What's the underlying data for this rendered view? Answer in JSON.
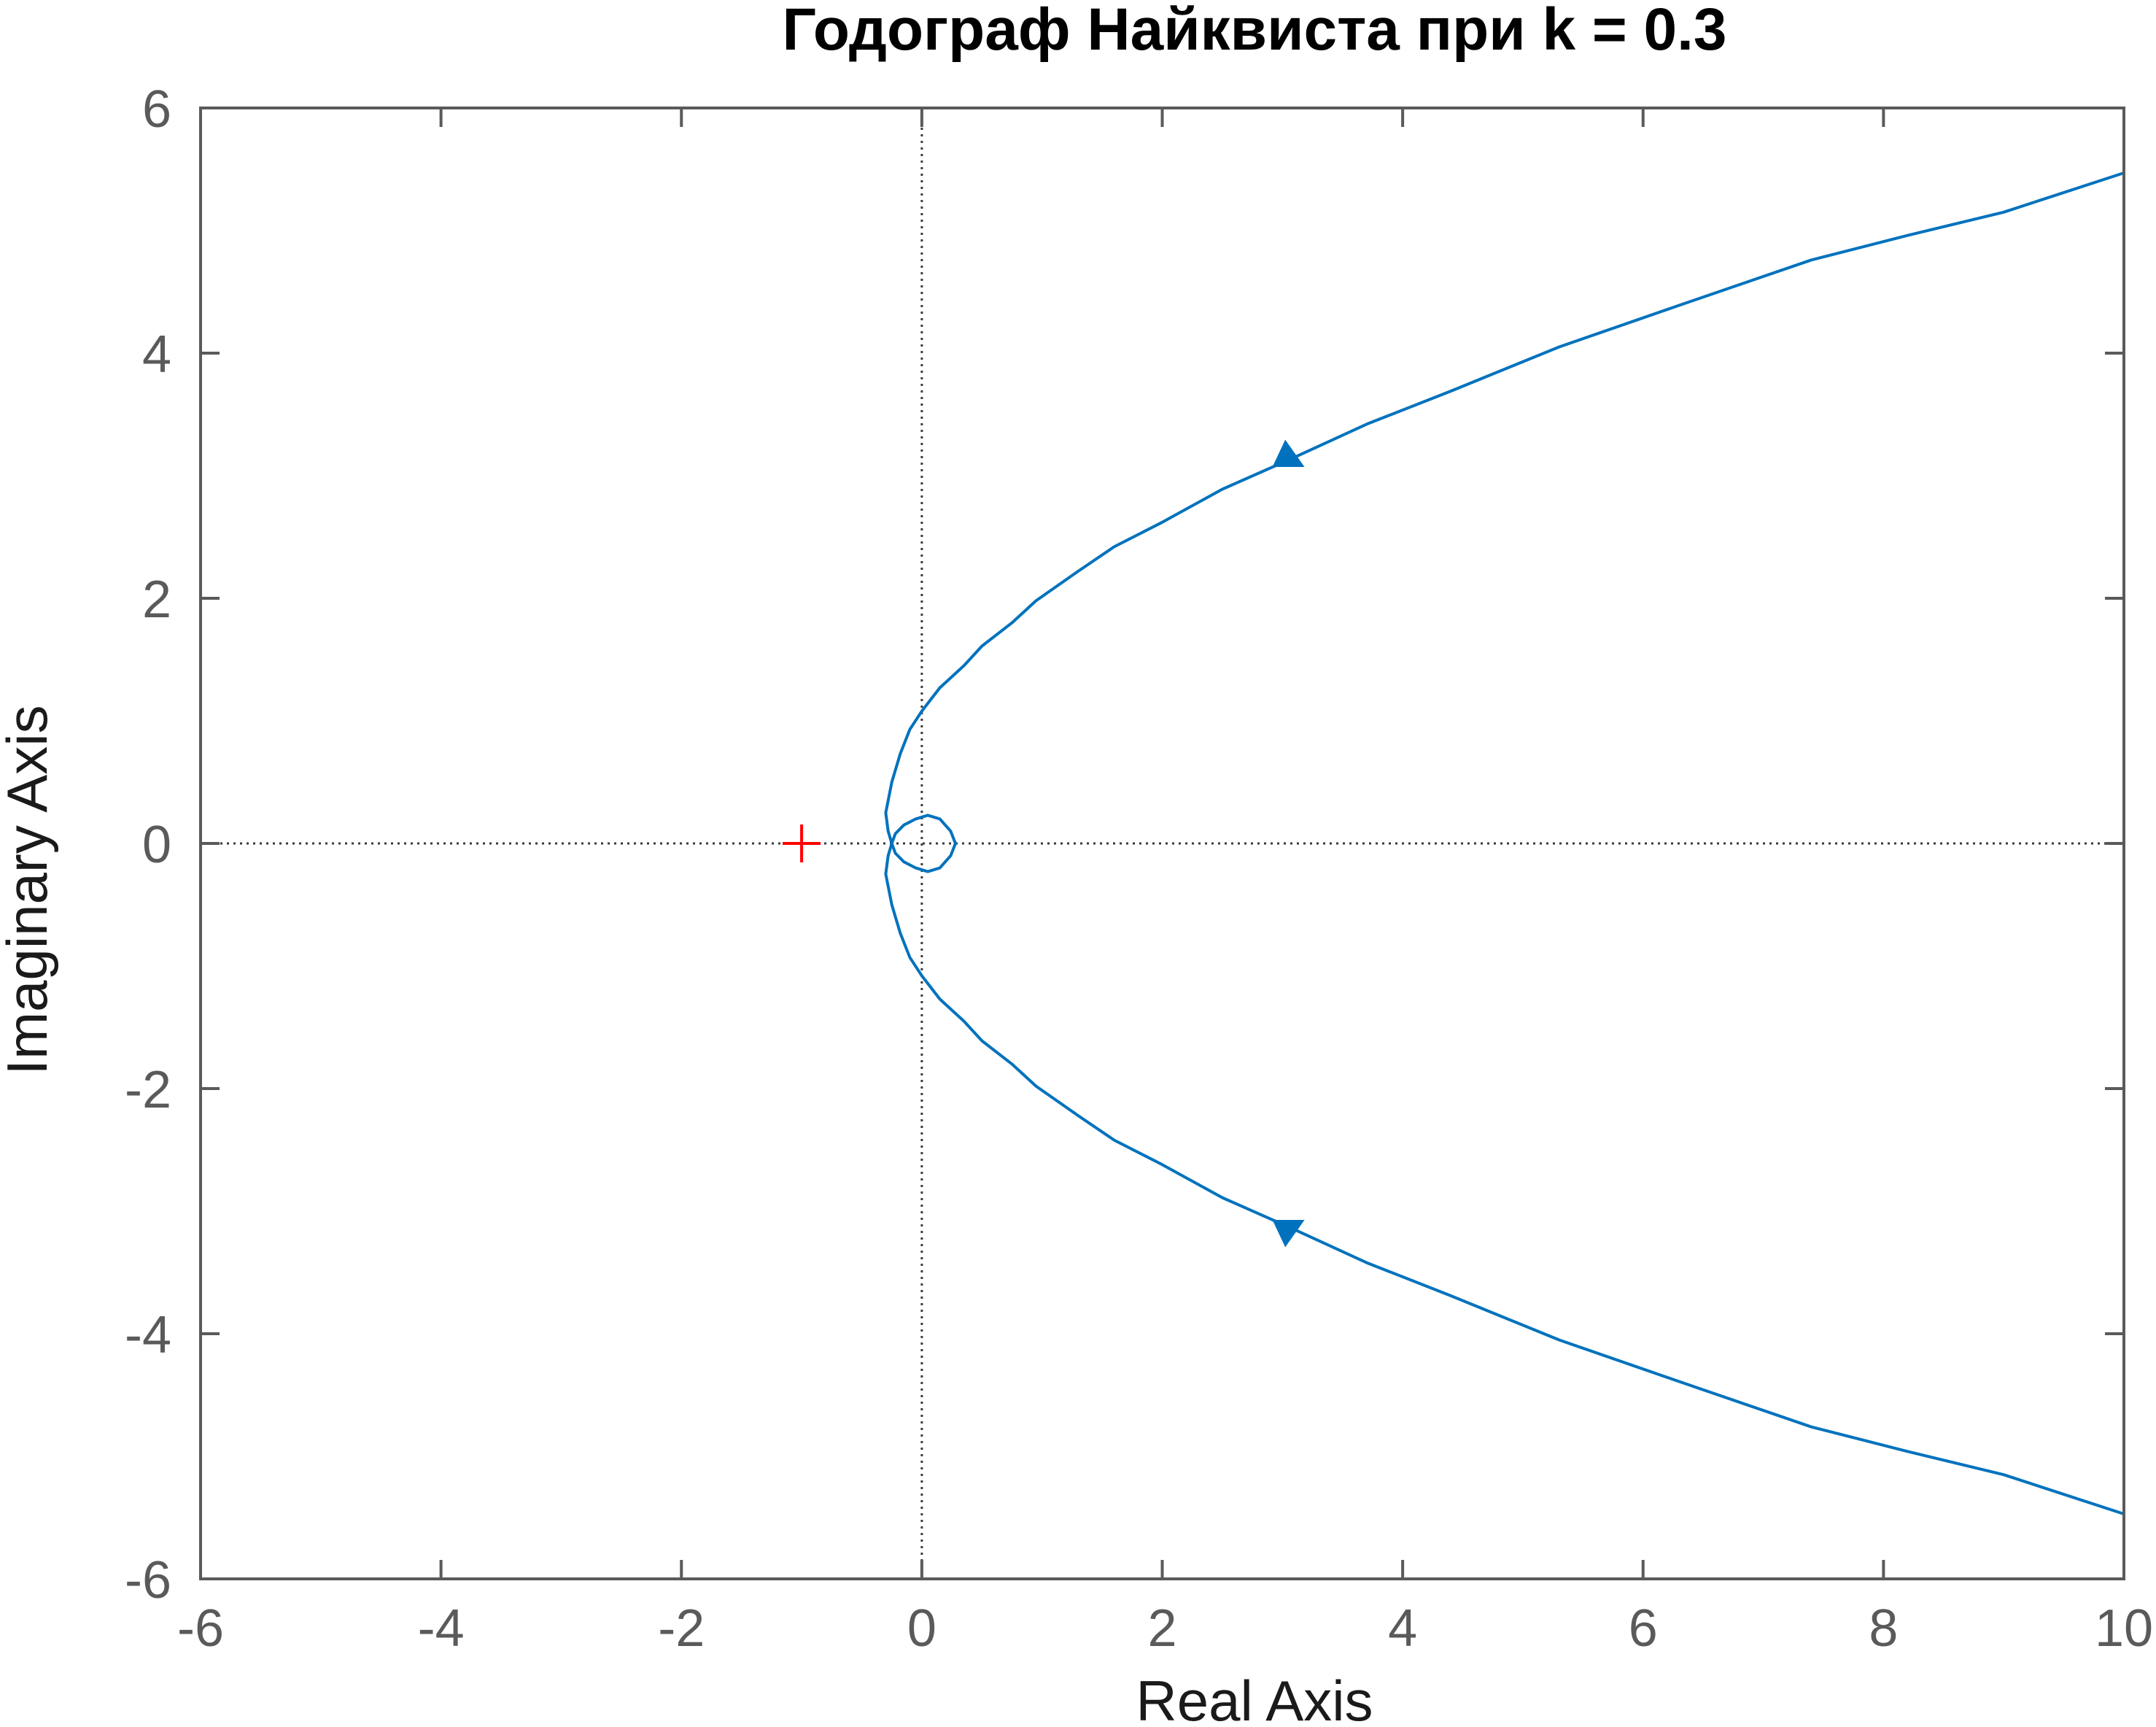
{
  "chart_data": {
    "type": "line",
    "title": "Годограф Найквиста при k = 0.3",
    "xlabel": "Real Axis",
    "ylabel": "Imaginary Axis",
    "xlim": [
      -6,
      10
    ],
    "ylim": [
      -6,
      6
    ],
    "xticks": [
      -6,
      -4,
      -2,
      0,
      2,
      4,
      6,
      8,
      10
    ],
    "yticks": [
      -6,
      -4,
      -2,
      0,
      2,
      4,
      6
    ],
    "xtick_labels": [
      "-6",
      "-4",
      "-2",
      "0",
      "2",
      "4",
      "6",
      "8",
      "10"
    ],
    "ytick_labels": [
      "-6",
      "-4",
      "-2",
      "0",
      "2",
      "4",
      "6"
    ],
    "grid": false,
    "zero_lines": "dotted",
    "series": [
      {
        "color": "#0072BD",
        "points": [
          [
            10.0,
            5.47
          ],
          [
            9.0,
            5.15
          ],
          [
            8.2,
            4.96
          ],
          [
            7.4,
            4.76
          ],
          [
            6.3,
            4.39
          ],
          [
            5.3,
            4.05
          ],
          [
            4.4,
            3.69
          ],
          [
            3.7,
            3.42
          ],
          [
            3.1,
            3.15
          ],
          [
            2.5,
            2.89
          ],
          [
            2.0,
            2.62
          ],
          [
            1.6,
            2.42
          ],
          [
            1.3,
            2.22
          ],
          [
            0.95,
            1.98
          ],
          [
            0.75,
            1.8
          ],
          [
            0.5,
            1.61
          ],
          [
            0.35,
            1.45
          ],
          [
            0.15,
            1.27
          ],
          [
            0.0,
            1.08
          ],
          [
            -0.1,
            0.93
          ],
          [
            -0.18,
            0.73
          ],
          [
            -0.25,
            0.5
          ],
          [
            -0.3,
            0.25
          ],
          [
            -0.28,
            0.1
          ],
          [
            -0.25,
            0.0
          ],
          [
            -0.22,
            -0.08
          ],
          [
            -0.15,
            -0.15
          ],
          [
            -0.05,
            -0.2
          ],
          [
            0.05,
            -0.23
          ],
          [
            0.15,
            -0.2
          ],
          [
            0.24,
            -0.1
          ],
          [
            0.28,
            0.0
          ],
          [
            0.24,
            0.1
          ],
          [
            0.15,
            0.2
          ],
          [
            0.05,
            0.23
          ],
          [
            -0.05,
            0.2
          ],
          [
            -0.15,
            0.15
          ],
          [
            -0.22,
            0.08
          ],
          [
            -0.25,
            0.0
          ],
          [
            -0.28,
            -0.1
          ],
          [
            -0.3,
            -0.25
          ],
          [
            -0.25,
            -0.5
          ],
          [
            -0.18,
            -0.73
          ],
          [
            -0.1,
            -0.93
          ],
          [
            0.0,
            -1.08
          ],
          [
            0.15,
            -1.27
          ],
          [
            0.35,
            -1.45
          ],
          [
            0.5,
            -1.61
          ],
          [
            0.75,
            -1.8
          ],
          [
            0.95,
            -1.98
          ],
          [
            1.3,
            -2.22
          ],
          [
            1.6,
            -2.42
          ],
          [
            2.0,
            -2.62
          ],
          [
            2.5,
            -2.89
          ],
          [
            3.1,
            -3.15
          ],
          [
            3.7,
            -3.42
          ],
          [
            4.4,
            -3.69
          ],
          [
            5.3,
            -4.05
          ],
          [
            6.3,
            -4.39
          ],
          [
            7.4,
            -4.76
          ],
          [
            8.2,
            -4.96
          ],
          [
            9.0,
            -5.15
          ],
          [
            10.0,
            -5.47
          ]
        ]
      }
    ],
    "arrows": [
      {
        "at": [
          3.05,
          3.15
        ],
        "direction": "left-down"
      },
      {
        "at": [
          3.05,
          -3.15
        ],
        "direction": "left-up"
      }
    ],
    "critical_point": {
      "x": -1,
      "y": 0,
      "marker": "+",
      "color": "#ff0000"
    },
    "colors": {
      "axes": "#5a5a5a",
      "zero_line": "#3a3a3a",
      "series": "#0072BD",
      "critical": "#ff0000"
    }
  }
}
